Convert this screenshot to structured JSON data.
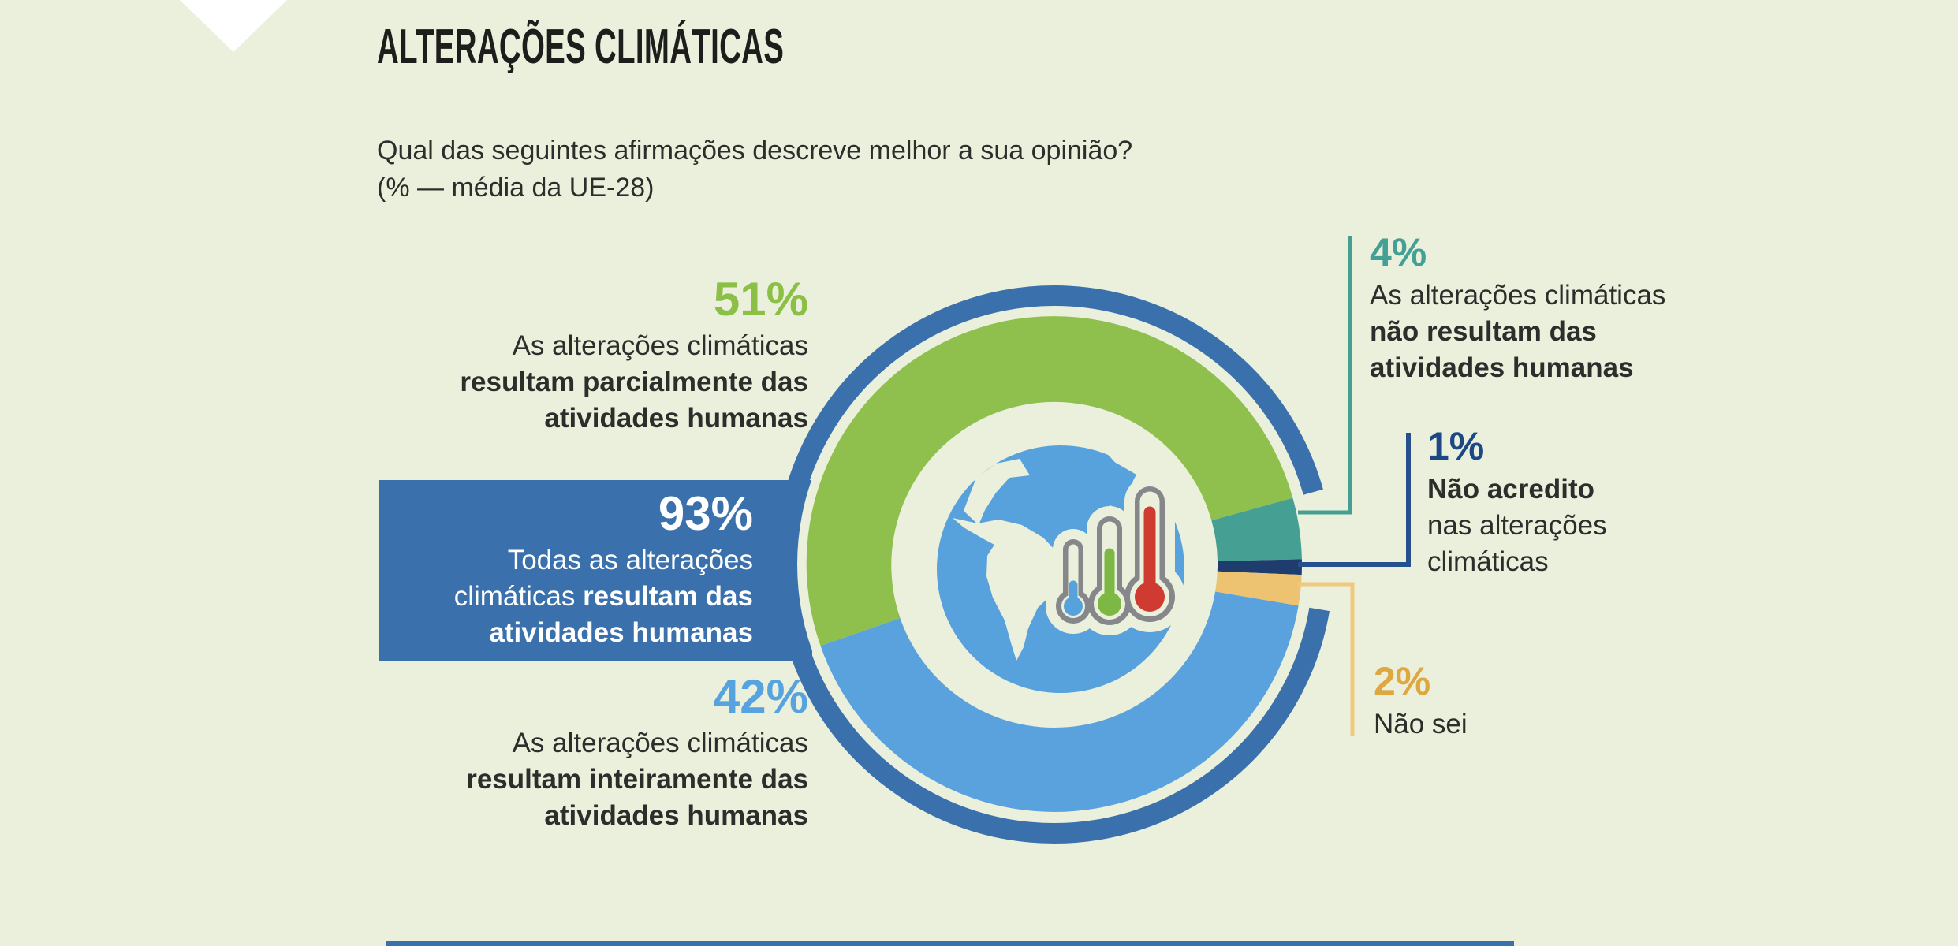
{
  "header": {
    "title": "ALTERAÇÕES CLIMÁTICAS",
    "question_line1": "Qual das seguintes afirmações descreve melhor a sua opinião?",
    "question_line2": "(% — média da UE-28)"
  },
  "colors": {
    "background": "#eaf0dc",
    "title_text": "#1d1d1b",
    "body_text": "#2d2e2c",
    "highlight_blue": "#3a71ad",
    "green": "#8fc04e",
    "light_blue": "#5aa2de",
    "teal": "#45a093",
    "navy": "#1e3c6d",
    "yellow": "#edc372",
    "earth_blue": "#57a1dd",
    "thermo_gray": "#85878a",
    "thermo_red": "#cf3a31",
    "thermo_green": "#7cb843",
    "thermo_blue": "#57a1dd",
    "white": "#ffffff",
    "bottom_bar": "#3a71ad"
  },
  "chart_data": {
    "type": "pie",
    "subtype": "donut",
    "title": "Qual das seguintes afirmações descreve melhor a sua opinião? (% — média da UE-28)",
    "unit": "%",
    "segments": [
      {
        "label": "As alterações climáticas resultam parcialmente das atividades humanas",
        "value": 51,
        "color": "#8fc04e"
      },
      {
        "label": "As alterações climáticas não resultam das atividades humanas",
        "value": 4,
        "color": "#45a093"
      },
      {
        "label": "Não acredito nas alterações climáticas",
        "value": 1,
        "color": "#1e3c6d"
      },
      {
        "label": "Não sei",
        "value": 2,
        "color": "#edc372"
      },
      {
        "label": "As alterações climáticas resultam inteiramente das atividades humanas",
        "value": 42,
        "color": "#5aa2de"
      }
    ],
    "highlight_total": {
      "label": "Todas as alterações climáticas resultam das atividades humanas",
      "value": 93,
      "color": "#3a71ad",
      "includes_segments": [
        51,
        42
      ]
    },
    "legend_position": "callouts-around-chart",
    "center_icon": "globe-with-thermometers-icon"
  },
  "callouts": [
    {
      "id": "c51",
      "percent": "51%",
      "percent_color": "#8cbf45",
      "lines": [
        [
          {
            "t": "As alterações climáticas"
          }
        ],
        [
          {
            "t": "resultam parcialmente das",
            "b": 1
          }
        ],
        [
          {
            "t": "atividades humanas",
            "b": 1
          }
        ]
      ]
    },
    {
      "id": "c93",
      "percent": "93%",
      "percent_color": "#ffffff",
      "text_color": "#ffffff",
      "lines": [
        [
          {
            "t": "Todas as alterações"
          }
        ],
        [
          {
            "t": "climáticas "
          },
          {
            "t": "resultam das",
            "b": 1
          }
        ],
        [
          {
            "t": "atividades humanas",
            "b": 1
          }
        ]
      ]
    },
    {
      "id": "c42",
      "percent": "42%",
      "percent_color": "#57a3e0",
      "lines": [
        [
          {
            "t": "As alterações climáticas"
          }
        ],
        [
          {
            "t": "resultam inteiramente das",
            "b": 1
          }
        ],
        [
          {
            "t": "atividades humanas",
            "b": 1
          }
        ]
      ]
    },
    {
      "id": "c4",
      "percent": "4%",
      "percent_color": "#44a095",
      "connector_color": "#45a093",
      "lines": [
        [
          {
            "t": "As alterações climáticas"
          }
        ],
        [
          {
            "t": "não resultam das",
            "b": 1
          }
        ],
        [
          {
            "t": "atividades humanas",
            "b": 1
          }
        ]
      ]
    },
    {
      "id": "c1",
      "percent": "1%",
      "percent_color": "#1d4886",
      "connector_color": "#26508d",
      "lines": [
        [
          {
            "t": "Não acredito",
            "b": 1
          }
        ],
        [
          {
            "t": "nas alterações"
          }
        ],
        [
          {
            "t": "climáticas"
          }
        ]
      ]
    },
    {
      "id": "c2",
      "percent": "2%",
      "percent_color": "#dfa73f",
      "connector_color": "#f0c87e",
      "lines": [
        [
          {
            "t": "Não sei"
          }
        ]
      ]
    }
  ]
}
